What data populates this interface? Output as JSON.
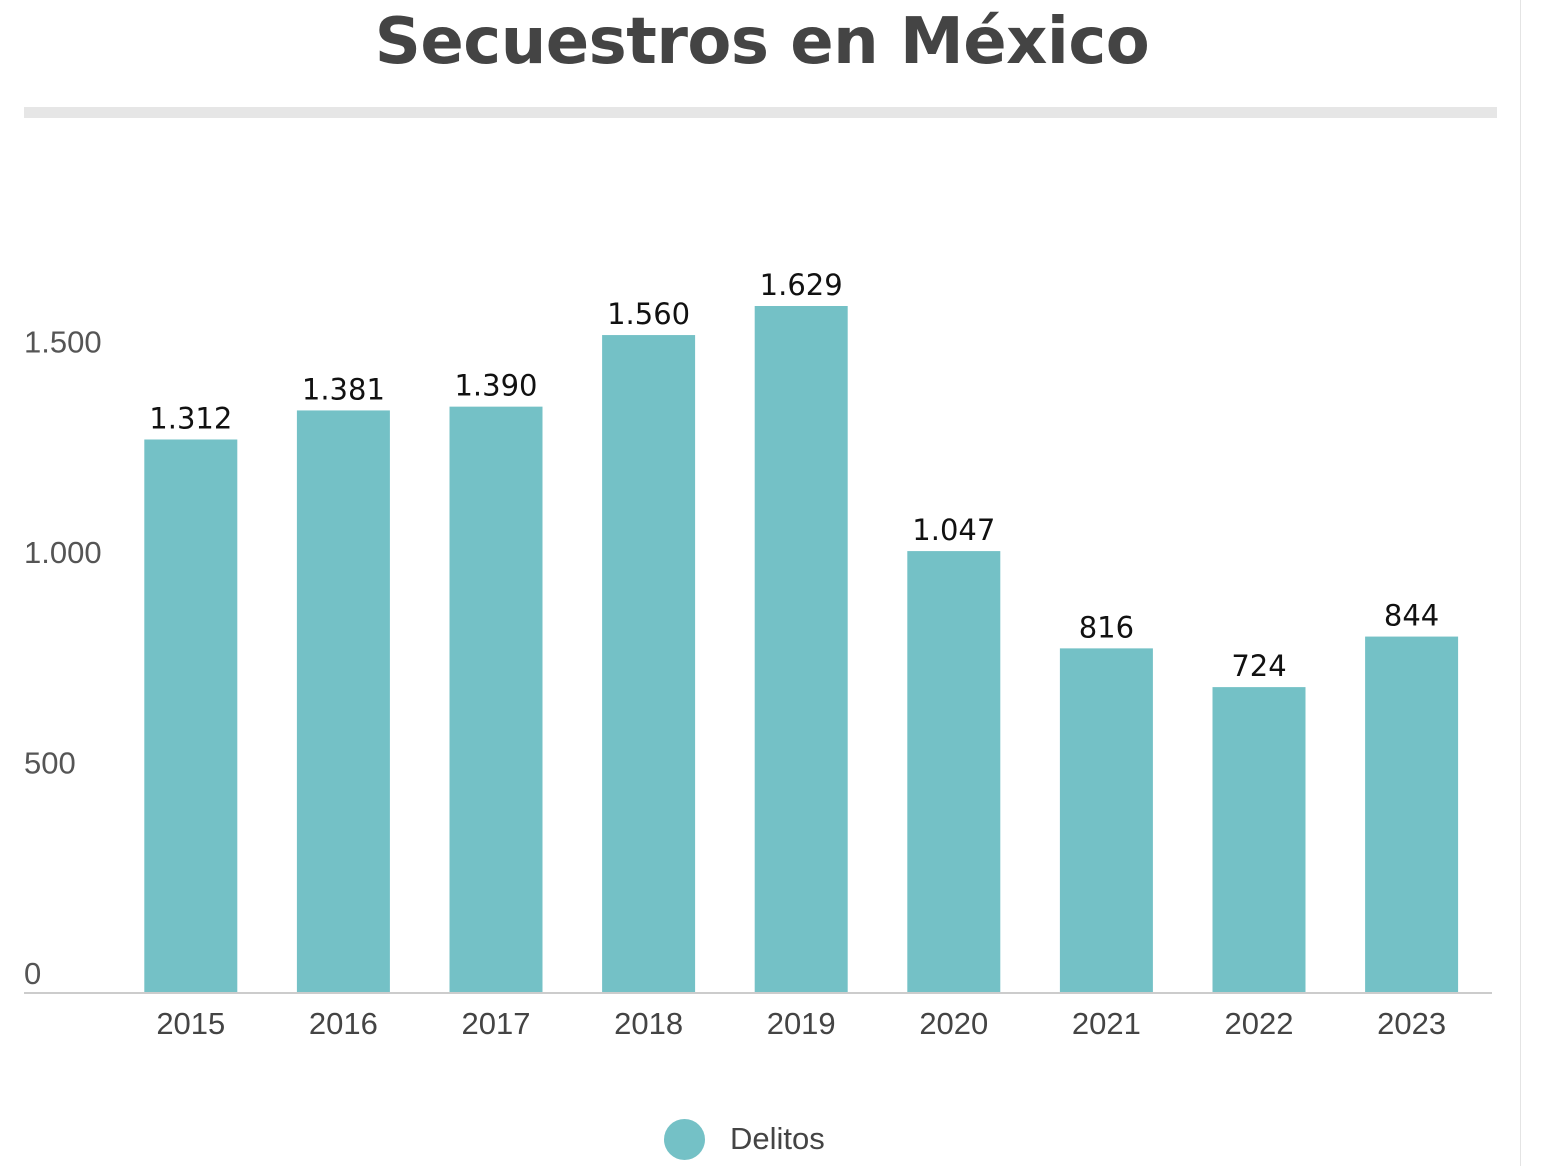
{
  "title": "Secuestros en México",
  "colors": {
    "bar": "#74c1c6",
    "axis": "#cccccc",
    "title_rule": "#e6e6e6"
  },
  "chart_data": {
    "type": "bar",
    "title": "Secuestros en México",
    "xlabel": "",
    "ylabel": "",
    "categories": [
      "2015",
      "2016",
      "2017",
      "2018",
      "2019",
      "2020",
      "2021",
      "2022",
      "2023"
    ],
    "series": [
      {
        "name": "Delitos",
        "values": [
          1312,
          1381,
          1390,
          1560,
          1629,
          1047,
          816,
          724,
          844
        ],
        "value_labels": [
          "1.312",
          "1.381",
          "1.390",
          "1.560",
          "1.629",
          "1.047",
          "816",
          "724",
          "844"
        ]
      }
    ],
    "yticks": [
      0,
      500,
      1000,
      1500
    ],
    "ytick_labels": [
      "0",
      "500",
      "1.000",
      "1.500"
    ],
    "ylim": [
      0,
      1629
    ],
    "grid": false,
    "legend_position": "bottom-center"
  },
  "legend": {
    "label": "Delitos"
  }
}
